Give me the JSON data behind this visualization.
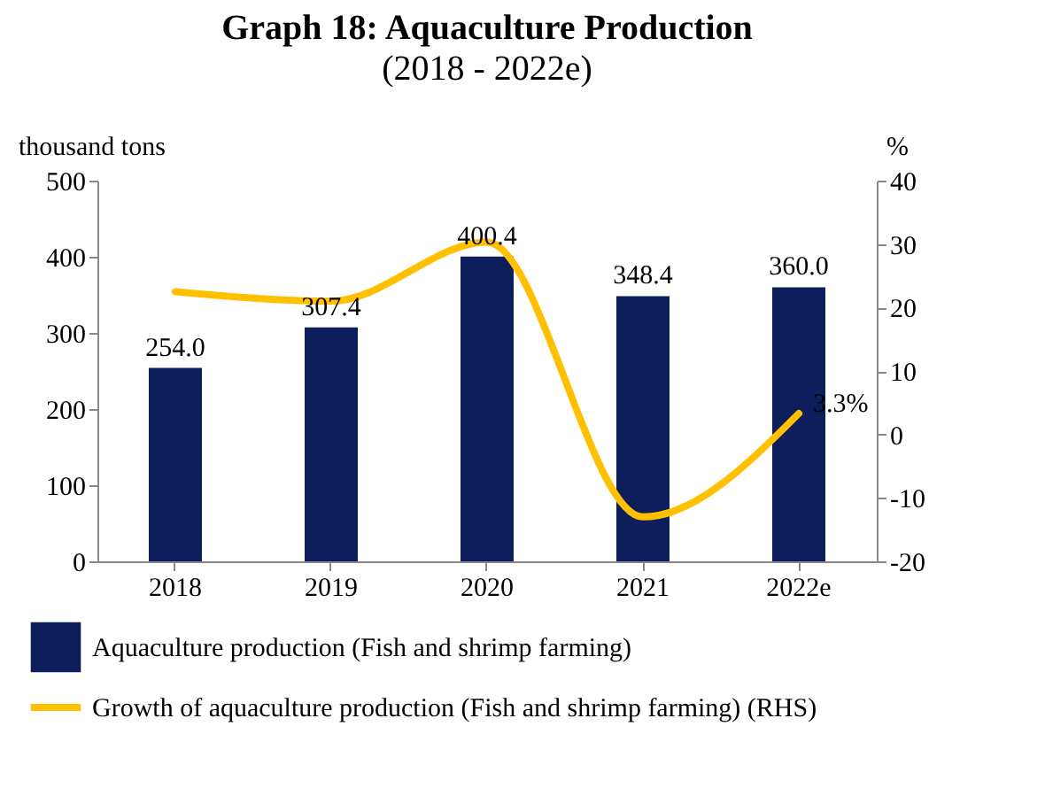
{
  "chart_data": {
    "type": "bar",
    "title": "Graph 18: Aquaculture Production",
    "subtitle": "(2018 - 2022e)",
    "ylabel": "thousand tons",
    "y2label": "%",
    "categories": [
      "2018",
      "2019",
      "2020",
      "2021",
      "2022e"
    ],
    "series": [
      {
        "name": "Aquaculture production (Fish and shrimp farming)",
        "color": "#0c1e5b",
        "values": [
          254.0,
          307.4,
          400.4,
          348.4,
          360.0
        ],
        "value_labels": [
          "254.0",
          "307.4",
          "400.4",
          "348.4",
          "360.0"
        ]
      },
      {
        "name": "Growth of aquaculture production (Fish and shrimp farming) (RHS)",
        "type": "line",
        "axis": "y2",
        "color": "#ffc000",
        "values": [
          22.5,
          21.0,
          30.3,
          -13.0,
          3.3
        ],
        "value_labels": [
          null,
          null,
          null,
          null,
          "3.3%"
        ]
      }
    ],
    "ylim": [
      0,
      500
    ],
    "yticks": [
      0,
      100,
      200,
      300,
      400,
      500
    ],
    "y2lim": [
      -20,
      40
    ],
    "y2ticks": [
      -20,
      -10,
      0,
      10,
      20,
      30,
      40
    ],
    "legend": "bottom"
  }
}
